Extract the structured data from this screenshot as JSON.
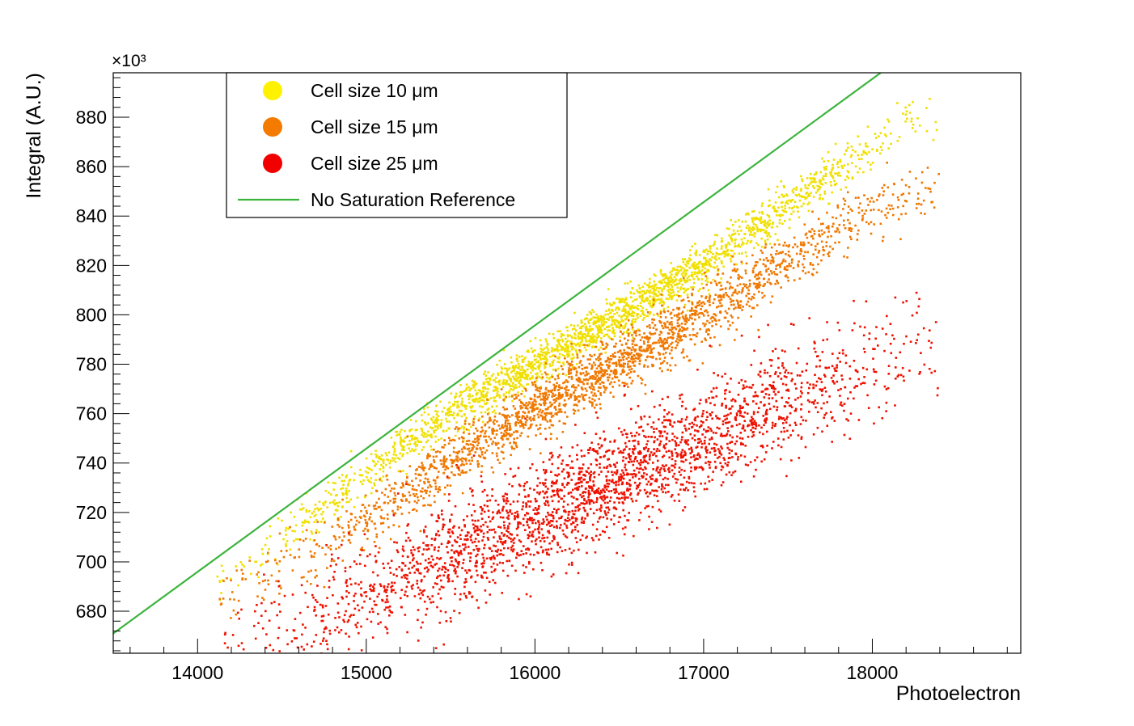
{
  "chart_data": {
    "type": "scatter",
    "xlabel": "Photoelectron",
    "ylabel": "Integral (A.U.)",
    "y_multiplier": "×10³",
    "xlim": [
      13500,
      18880
    ],
    "ylim": [
      663,
      898
    ],
    "x_ticks": [
      14000,
      15000,
      16000,
      17000,
      18000
    ],
    "y_ticks": [
      680,
      700,
      720,
      740,
      760,
      780,
      800,
      820,
      840,
      860,
      880
    ],
    "legend_position": "top-left",
    "grid": false,
    "series": [
      {
        "name": "Cell size 10 μm",
        "marker": "point",
        "color": "#F0E000",
        "trend": [
          [
            14200,
            694
          ],
          [
            15000,
            736
          ],
          [
            15500,
            760
          ],
          [
            16000,
            780
          ],
          [
            16500,
            800
          ],
          [
            17000,
            820
          ],
          [
            17500,
            845
          ],
          [
            18000,
            868
          ],
          [
            18200,
            878
          ]
        ],
        "spread_y": 4.5,
        "n_points": 2200
      },
      {
        "name": "Cell size 15 μm",
        "marker": "point",
        "color": "#F07800",
        "trend": [
          [
            14200,
            688
          ],
          [
            14800,
            708
          ],
          [
            15200,
            727
          ],
          [
            15600,
            745
          ],
          [
            16000,
            762
          ],
          [
            16500,
            780
          ],
          [
            17000,
            800
          ],
          [
            17500,
            823
          ],
          [
            18000,
            842
          ],
          [
            18200,
            848
          ]
        ],
        "spread_y": 6,
        "n_points": 2200
      },
      {
        "name": "Cell size 25 μm",
        "marker": "point",
        "color": "#EE1100",
        "trend": [
          [
            14200,
            668
          ],
          [
            14600,
            673
          ],
          [
            15000,
            686
          ],
          [
            15500,
            704
          ],
          [
            16000,
            718
          ],
          [
            16500,
            734
          ],
          [
            17000,
            750
          ],
          [
            17500,
            765
          ],
          [
            18000,
            778
          ],
          [
            18200,
            785
          ]
        ],
        "spread_y": 11,
        "n_points": 2600
      },
      {
        "name": "No Saturation Reference",
        "marker": "line",
        "color": "#3CB43C",
        "points": [
          [
            13500,
            671
          ],
          [
            18050,
            898
          ]
        ]
      }
    ]
  }
}
